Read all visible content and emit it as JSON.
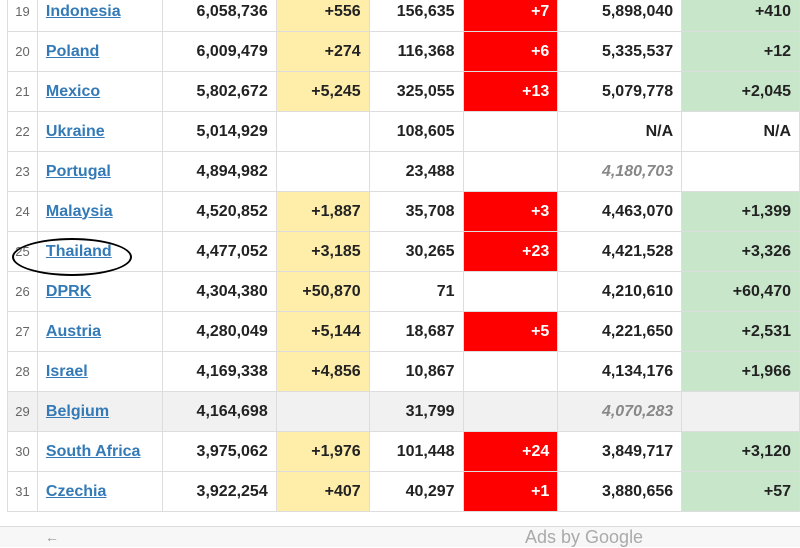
{
  "rows": [
    {
      "rank": "19",
      "country": "Indonesia",
      "total": "6,058,736",
      "new_cases": "+556",
      "deaths": "156,635",
      "new_deaths": "+7",
      "recovered": "5,898,040",
      "new_recovered": "+410"
    },
    {
      "rank": "20",
      "country": "Poland",
      "total": "6,009,479",
      "new_cases": "+274",
      "deaths": "116,368",
      "new_deaths": "+6",
      "recovered": "5,335,537",
      "new_recovered": "+12"
    },
    {
      "rank": "21",
      "country": "Mexico",
      "total": "5,802,672",
      "new_cases": "+5,245",
      "deaths": "325,055",
      "new_deaths": "+13",
      "recovered": "5,079,778",
      "new_recovered": "+2,045"
    },
    {
      "rank": "22",
      "country": "Ukraine",
      "total": "5,014,929",
      "new_cases": "",
      "deaths": "108,605",
      "new_deaths": "",
      "recovered": "N/A",
      "new_recovered": "N/A"
    },
    {
      "rank": "23",
      "country": "Portugal",
      "total": "4,894,982",
      "new_cases": "",
      "deaths": "23,488",
      "new_deaths": "",
      "recovered": "4,180,703",
      "new_recovered": ""
    },
    {
      "rank": "24",
      "country": "Malaysia",
      "total": "4,520,852",
      "new_cases": "+1,887",
      "deaths": "35,708",
      "new_deaths": "+3",
      "recovered": "4,463,070",
      "new_recovered": "+1,399"
    },
    {
      "rank": "25",
      "country": "Thailand",
      "total": "4,477,052",
      "new_cases": "+3,185",
      "deaths": "30,265",
      "new_deaths": "+23",
      "recovered": "4,421,528",
      "new_recovered": "+3,326"
    },
    {
      "rank": "26",
      "country": "DPRK",
      "total": "4,304,380",
      "new_cases": "+50,870",
      "deaths": "71",
      "new_deaths": "",
      "recovered": "4,210,610",
      "new_recovered": "+60,470"
    },
    {
      "rank": "27",
      "country": "Austria",
      "total": "4,280,049",
      "new_cases": "+5,144",
      "deaths": "18,687",
      "new_deaths": "+5",
      "recovered": "4,221,650",
      "new_recovered": "+2,531"
    },
    {
      "rank": "28",
      "country": "Israel",
      "total": "4,169,338",
      "new_cases": "+4,856",
      "deaths": "10,867",
      "new_deaths": "",
      "recovered": "4,134,176",
      "new_recovered": "+1,966"
    },
    {
      "rank": "29",
      "country": "Belgium",
      "total": "4,164,698",
      "new_cases": "",
      "deaths": "31,799",
      "new_deaths": "",
      "recovered": "4,070,283",
      "new_recovered": ""
    },
    {
      "rank": "30",
      "country": "South Africa",
      "total": "3,975,062",
      "new_cases": "+1,976",
      "deaths": "101,448",
      "new_deaths": "+24",
      "recovered": "3,849,717",
      "new_recovered": "+3,120"
    },
    {
      "rank": "31",
      "country": "Czechia",
      "total": "3,922,254",
      "new_cases": "+407",
      "deaths": "40,297",
      "new_deaths": "+1",
      "recovered": "3,880,656",
      "new_recovered": "+57"
    }
  ],
  "ads": {
    "back": "←",
    "label": "Ads by Google"
  }
}
